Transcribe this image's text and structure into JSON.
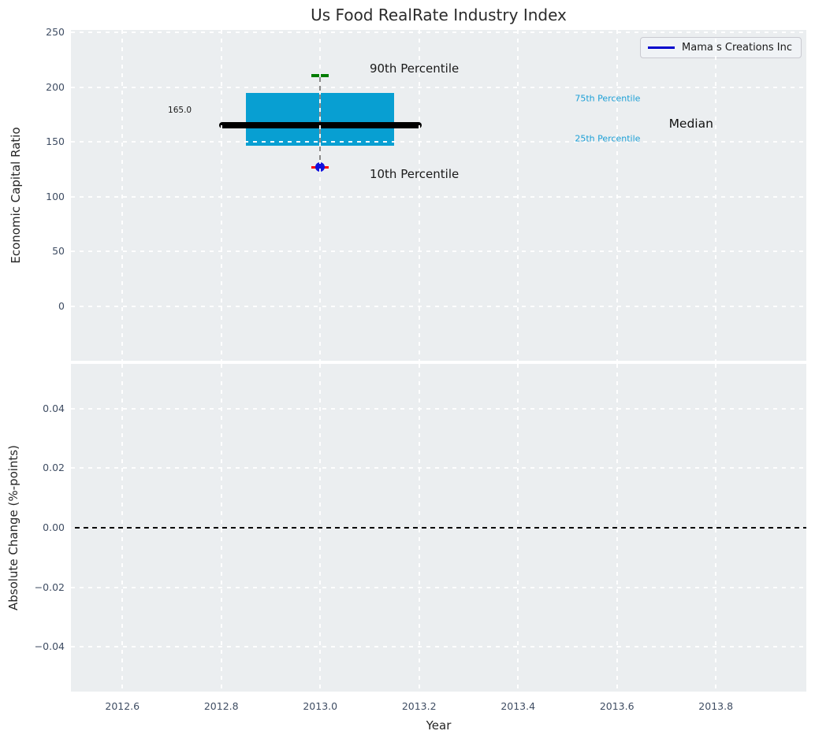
{
  "title": "Us Food RealRate Industry Index",
  "axes": {
    "top": {
      "ylabel": "Economic Capital Ratio"
    },
    "bottom": {
      "ylabel": "Absolute Change (%-points)",
      "xlabel": "Year"
    }
  },
  "legend": {
    "label": "Mama s Creations Inc"
  },
  "colors": {
    "figure_bg": "#ffffff",
    "axes_bg": "#ebeef0",
    "grid": "#ffffff",
    "box_fill": "#089fd2",
    "median_line": "#000000",
    "whisker": "#8a8a8a",
    "cap_90": "#007c00",
    "cap_10": "#fe0000",
    "marker_10": "#1010dd",
    "legend_line": "#0000cc",
    "zero_line": "#000000",
    "tick_label": "#3f4d63",
    "text": "#262626",
    "percentile_text": "#1b9fd6"
  },
  "chart_data": [
    {
      "type": "boxplot",
      "title": "Us Food RealRate Industry Index",
      "ylabel": "Economic Capital Ratio",
      "series": "Mama s Creations Inc",
      "x_center": 2013.0,
      "stats": {
        "p10": 127.0,
        "p25": 146.5,
        "median": 165.0,
        "p75": 194.5,
        "p90": 210.5
      },
      "median_label": "165.0",
      "box_x_span": [
        2012.85,
        2013.15
      ],
      "median_x_span": [
        2012.795,
        2013.205
      ],
      "xlim": [
        2012.496,
        2013.983
      ],
      "ylim": [
        -49.6,
        252.2
      ],
      "xticks": [
        2012.6,
        2012.8,
        2013.0,
        2013.2,
        2013.4,
        2013.6,
        2013.8
      ],
      "yticks": [
        0,
        50,
        100,
        150,
        200,
        250
      ],
      "ytick_labels": [
        "0",
        "50",
        "100",
        "150",
        "200",
        "250"
      ],
      "grid": "white dashed",
      "legend_position": "upper right",
      "annotations": [
        {
          "text": "165.0",
          "x": 2012.74,
          "y": 179.0,
          "align": "right",
          "size": 10.5,
          "color": "#1a1a1a"
        },
        {
          "text": "90th Percentile",
          "x": 2013.1,
          "y": 217.0,
          "align": "left",
          "size": 15,
          "color": "#1a1a1a"
        },
        {
          "text": "10th Percentile",
          "x": 2013.1,
          "y": 121.0,
          "align": "left",
          "size": 15,
          "color": "#1a1a1a"
        },
        {
          "text": "75th Percentile",
          "x": 2013.515,
          "y": 189.5,
          "align": "left",
          "size": 11,
          "color": "#1b9fd6"
        },
        {
          "text": "25th Percentile",
          "x": 2013.515,
          "y": 153.0,
          "align": "left",
          "size": 11,
          "color": "#1b9fd6"
        },
        {
          "text": "Median",
          "x": 2013.705,
          "y": 166.5,
          "align": "left",
          "size": 15.5,
          "color": "#111111"
        }
      ]
    },
    {
      "type": "line",
      "ylabel": "Absolute Change (%-points)",
      "xlabel": "Year",
      "series": "Mama s Creations Inc",
      "x": [],
      "values": [],
      "zero_line": 0.0,
      "xlim": [
        2012.496,
        2013.983
      ],
      "ylim": [
        -0.055,
        0.055
      ],
      "xticks": [
        2012.6,
        2012.8,
        2013.0,
        2013.2,
        2013.4,
        2013.6,
        2013.8
      ],
      "xtick_labels": [
        "2012.6",
        "2012.8",
        "2013.0",
        "2013.2",
        "2013.4",
        "2013.6",
        "2013.8"
      ],
      "yticks": [
        -0.04,
        -0.02,
        0.0,
        0.02,
        0.04
      ],
      "ytick_labels": [
        "−0.04",
        "−0.02",
        "0.00",
        "0.02",
        "0.04"
      ],
      "grid": "white dashed"
    }
  ]
}
